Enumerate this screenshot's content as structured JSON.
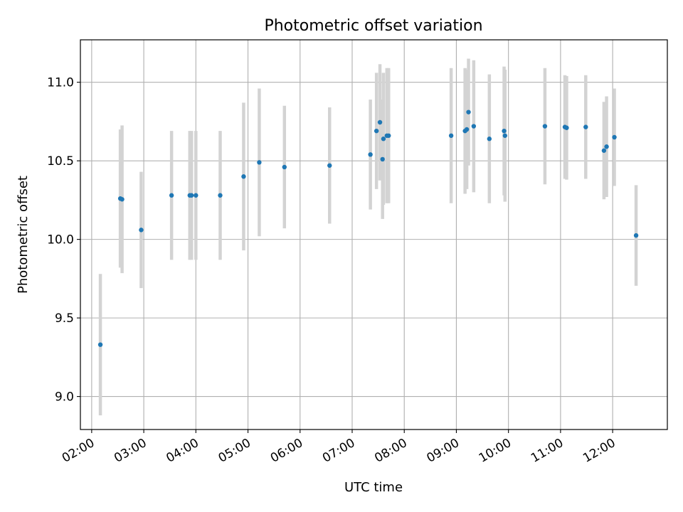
{
  "chart_data": {
    "type": "scatter",
    "title": "Photometric offset variation",
    "xlabel": "UTC time",
    "ylabel": "Photometric offset",
    "x_unit": "UTC time (HH:MM)",
    "xlim": [
      "01:47",
      "13:03"
    ],
    "ylim": [
      8.79,
      11.27
    ],
    "x_ticks": [
      "02:00",
      "03:00",
      "04:00",
      "05:00",
      "06:00",
      "07:00",
      "08:00",
      "09:00",
      "10:00",
      "11:00",
      "12:00"
    ],
    "y_ticks": [
      9.0,
      9.5,
      10.0,
      10.5,
      11.0
    ],
    "y_tick_labels": [
      "9.0",
      "9.5",
      "10.0",
      "10.5",
      "11.0"
    ],
    "grid": true,
    "legend": "none",
    "point_color": "#1f77b4",
    "errorbar_color": "#d3d3d3",
    "points": [
      {
        "x": "02:10",
        "y": 9.33,
        "err": 0.45
      },
      {
        "x": "02:33",
        "y": 10.26,
        "err": 0.44
      },
      {
        "x": "02:35",
        "y": 10.255,
        "err": 0.47
      },
      {
        "x": "02:57",
        "y": 10.06,
        "err": 0.37
      },
      {
        "x": "03:32",
        "y": 10.28,
        "err": 0.41
      },
      {
        "x": "03:53",
        "y": 10.28,
        "err": 0.41
      },
      {
        "x": "03:55",
        "y": 10.28,
        "err": 0.41
      },
      {
        "x": "04:00",
        "y": 10.28,
        "err": 0.41
      },
      {
        "x": "04:28",
        "y": 10.28,
        "err": 0.41
      },
      {
        "x": "04:55",
        "y": 10.4,
        "err": 0.47
      },
      {
        "x": "05:13",
        "y": 10.49,
        "err": 0.47
      },
      {
        "x": "05:42",
        "y": 10.46,
        "err": 0.39
      },
      {
        "x": "06:34",
        "y": 10.47,
        "err": 0.37
      },
      {
        "x": "07:21",
        "y": 10.54,
        "err": 0.35
      },
      {
        "x": "07:28",
        "y": 10.69,
        "err": 0.37
      },
      {
        "x": "07:32",
        "y": 10.745,
        "err": 0.37
      },
      {
        "x": "07:35",
        "y": 10.51,
        "err": 0.38
      },
      {
        "x": "07:36",
        "y": 10.64,
        "err": 0.42
      },
      {
        "x": "07:40",
        "y": 10.66,
        "err": 0.43
      },
      {
        "x": "07:42",
        "y": 10.66,
        "err": 0.43
      },
      {
        "x": "08:54",
        "y": 10.66,
        "err": 0.43
      },
      {
        "x": "09:10",
        "y": 10.69,
        "err": 0.4
      },
      {
        "x": "09:12",
        "y": 10.7,
        "err": 0.38
      },
      {
        "x": "09:14",
        "y": 10.81,
        "err": 0.34
      },
      {
        "x": "09:20",
        "y": 10.72,
        "err": 0.42
      },
      {
        "x": "09:38",
        "y": 10.64,
        "err": 0.41
      },
      {
        "x": "09:55",
        "y": 10.69,
        "err": 0.41
      },
      {
        "x": "09:56",
        "y": 10.66,
        "err": 0.42
      },
      {
        "x": "10:42",
        "y": 10.72,
        "err": 0.37
      },
      {
        "x": "11:05",
        "y": 10.715,
        "err": 0.33
      },
      {
        "x": "11:07",
        "y": 10.71,
        "err": 0.33
      },
      {
        "x": "11:29",
        "y": 10.715,
        "err": 0.33
      },
      {
        "x": "11:50",
        "y": 10.565,
        "err": 0.31
      },
      {
        "x": "11:53",
        "y": 10.59,
        "err": 0.32
      },
      {
        "x": "12:02",
        "y": 10.65,
        "err": 0.31
      },
      {
        "x": "12:27",
        "y": 10.025,
        "err": 0.32
      }
    ]
  }
}
